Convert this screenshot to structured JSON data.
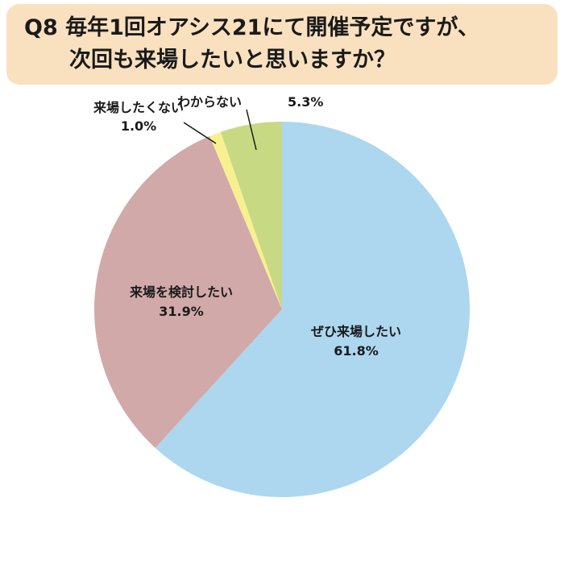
{
  "title": {
    "line1": "Q8 毎年1回オアシス21にて開催予定ですが、",
    "line2": "次回も来場したいと思いますか？"
  },
  "chart_data": {
    "type": "pie",
    "slices": [
      {
        "label": "ぜひ来場したい",
        "value": 61.8,
        "value_label": "61.8%",
        "color": "#acd7ef"
      },
      {
        "label": "来場を検討したい",
        "value": 31.9,
        "value_label": "31.9%",
        "color": "#d1a9a9"
      },
      {
        "label": "来場したくない",
        "value": 1.0,
        "value_label": "1.0%",
        "color": "#f7f091"
      },
      {
        "label": "わからない",
        "value": 5.3,
        "value_label": "5.3%",
        "color": "#c8d983"
      }
    ]
  }
}
